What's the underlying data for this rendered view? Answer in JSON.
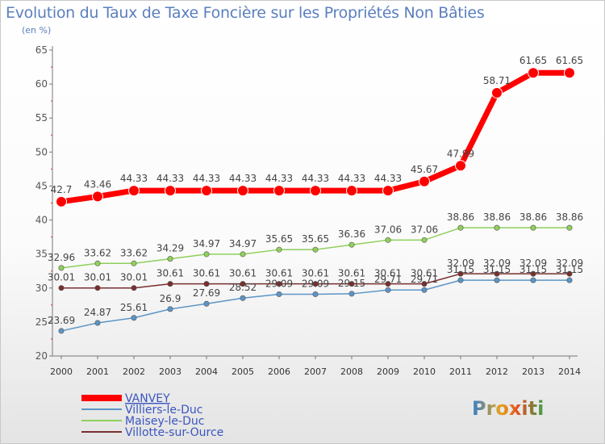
{
  "chart_data": {
    "type": "line",
    "title": "Evolution du Taux de Taxe Foncière sur les Propriétés Non Bâties",
    "ylabel": "(en %)",
    "xlabel": "",
    "ylim": [
      20,
      65
    ],
    "yticks": [
      "20",
      "25",
      "30",
      "35",
      "40",
      "45",
      "50",
      "55",
      "60",
      "65"
    ],
    "categories": [
      "2000",
      "2001",
      "2002",
      "2003",
      "2004",
      "2005",
      "2006",
      "2007",
      "2008",
      "2009",
      "2010",
      "2011",
      "2012",
      "2013",
      "2014"
    ],
    "series": [
      {
        "name": "VANVEY",
        "color": "#ff0000",
        "values": [
          42.7,
          43.46,
          44.33,
          44.33,
          44.33,
          44.33,
          44.33,
          44.33,
          44.33,
          44.33,
          45.67,
          47.99,
          58.71,
          61.65,
          61.65
        ],
        "labels": [
          "42.7",
          "43.46",
          "44.33",
          "44.33",
          "44.33",
          "44.33",
          "44.33",
          "44.33",
          "44.33",
          "44.33",
          "45.67",
          "47.99",
          "58.71",
          "61.65",
          "61.65"
        ]
      },
      {
        "name": "Villiers-le-Duc",
        "color": "#5c95c6",
        "values": [
          23.69,
          24.87,
          25.61,
          26.9,
          27.69,
          28.52,
          29.09,
          29.09,
          29.15,
          29.71,
          29.71,
          31.15,
          31.15,
          31.15,
          31.15
        ],
        "labels": [
          "23.69",
          "24.87",
          "25.61",
          "26.9",
          "27.69",
          "28.52",
          "29.09",
          "29.09",
          "29.15",
          "29.71",
          "29.71",
          "31.15",
          "31.15",
          "31.15",
          "31.15"
        ]
      },
      {
        "name": "Maisey-le-Duc",
        "color": "#8fd05b",
        "values": [
          32.96,
          33.62,
          33.62,
          34.29,
          34.97,
          34.97,
          35.65,
          35.65,
          36.36,
          37.06,
          37.06,
          38.86,
          38.86,
          38.86,
          38.86
        ],
        "labels": [
          "32.96",
          "33.62",
          "33.62",
          "34.29",
          "34.97",
          "34.97",
          "35.65",
          "35.65",
          "36.36",
          "37.06",
          "37.06",
          "38.86",
          "38.86",
          "38.86",
          "38.86"
        ]
      },
      {
        "name": "Villotte-sur-Ource",
        "color": "#7a2e2e",
        "values": [
          30.01,
          30.01,
          30.01,
          30.61,
          30.61,
          30.61,
          30.61,
          30.61,
          30.61,
          30.61,
          30.61,
          32.09,
          32.09,
          32.09,
          32.09
        ],
        "labels": [
          "30.01",
          "30.01",
          "30.01",
          "30.61",
          "30.61",
          "30.61",
          "30.61",
          "30.61",
          "30.61",
          "30.61",
          "30.61",
          "32.09",
          "32.09",
          "32.09",
          "32.09"
        ]
      }
    ],
    "legend": "bottom-left",
    "grid": false
  },
  "logo_text": "Proxiti"
}
